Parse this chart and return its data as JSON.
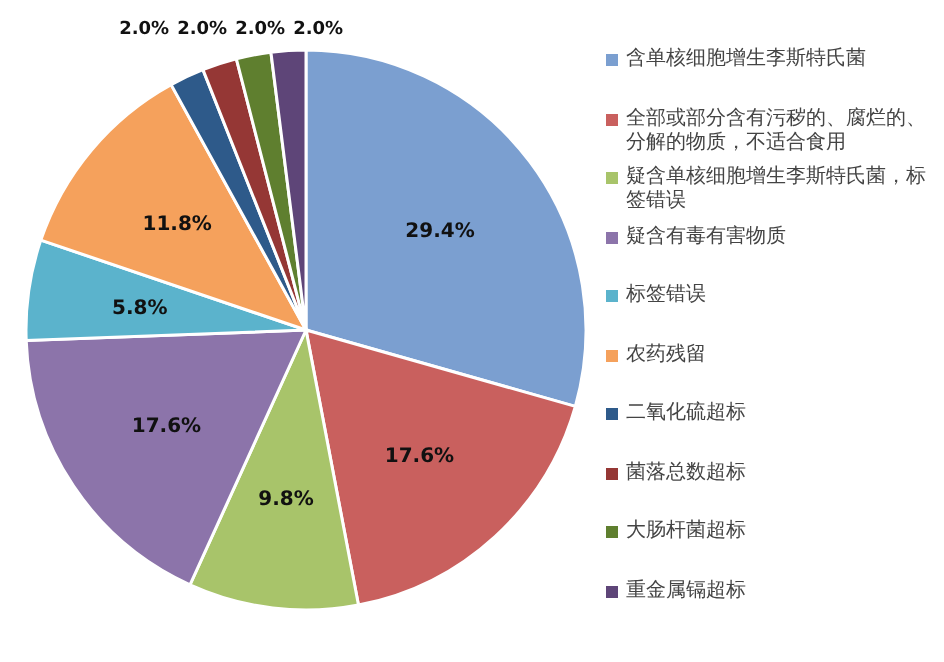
{
  "chart_data": {
    "type": "pie",
    "legend": "right",
    "categories": [
      "含单核细胞增生李斯特氏菌",
      "全部或部分含有污秽的、腐烂的、分解的物质，不适合食用",
      "疑含单核细胞增生李斯特氏菌，标签错误",
      "疑含有毒有害物质",
      "标签错误",
      "农药残留",
      "二氧化硫超标",
      "菌落总数超标",
      "大肠杆菌超标",
      "重金属镉超标"
    ],
    "values": [
      29.4,
      17.6,
      9.8,
      17.6,
      5.8,
      11.8,
      2.0,
      2.0,
      2.0,
      2.0
    ],
    "value_labels": [
      "29.4%",
      "17.6%",
      "9.8%",
      "17.6%",
      "5.8%",
      "11.8%",
      "2.0%",
      "2.0%",
      "2.0%",
      "2.0%"
    ],
    "colors": [
      "#7b9fd0",
      "#c9605e",
      "#a8c46a",
      "#8c74aa",
      "#5bb3cc",
      "#f5a15c",
      "#2e5a8a",
      "#953735",
      "#5f7f2f",
      "#5e4578"
    ]
  }
}
